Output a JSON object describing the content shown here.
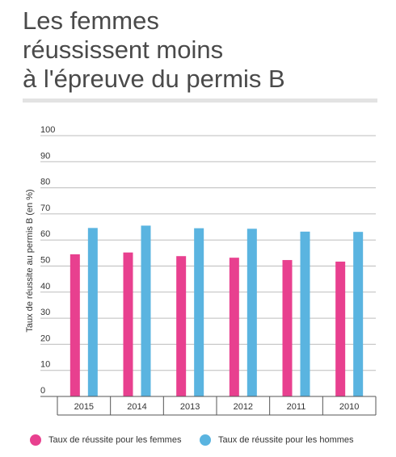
{
  "header": {
    "title_lines": [
      "Les femmes",
      "réussissent moins",
      "à l'épreuve du permis B"
    ]
  },
  "chart_data": {
    "type": "bar",
    "title": "Les femmes réussissent moins à l'épreuve du permis B",
    "ylabel": "Taux de réussite au permis B (en %)",
    "xlabel": "",
    "ylim": [
      0,
      100
    ],
    "yticks": [
      0,
      10,
      20,
      30,
      40,
      50,
      60,
      70,
      80,
      90,
      100
    ],
    "grid": true,
    "legend_position": "bottom",
    "categories": [
      "2015",
      "2014",
      "2013",
      "2012",
      "2011",
      "2010"
    ],
    "series": [
      {
        "name": "Taux de réussite pour les femmes",
        "color": "#e8408f",
        "values": [
          54.5,
          55.2,
          53.8,
          53.2,
          52.3,
          51.7
        ]
      },
      {
        "name": "Taux de réussite pour les hommes",
        "color": "#5ab4e0",
        "values": [
          64.6,
          65.5,
          64.5,
          64.3,
          63.2,
          63.1
        ]
      }
    ]
  }
}
